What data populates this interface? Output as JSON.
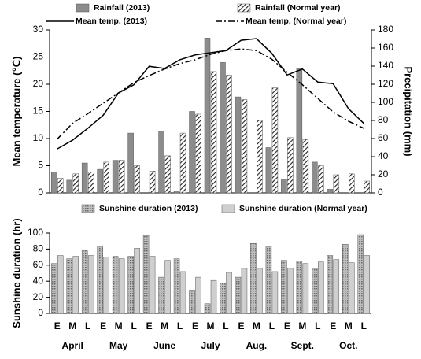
{
  "chart_data": [
    {
      "type": "bar",
      "y_label": "Mean temperature (℃)",
      "y2_label": "Precipitation (mm)",
      "ylim": [
        0,
        30
      ],
      "yticks": [
        0,
        5,
        10,
        15,
        20,
        25,
        30
      ],
      "y2lim": [
        0,
        180
      ],
      "y2ticks": [
        0,
        20,
        40,
        60,
        80,
        100,
        120,
        140,
        160,
        180
      ],
      "series": [
        {
          "name": "Rainfall (2013)",
          "type": "bar",
          "axis": "y2",
          "color": "#8c8c8c",
          "values": [
            23,
            14,
            33,
            26,
            36,
            66,
            0,
            68,
            2,
            90,
            171,
            144,
            106,
            0,
            50,
            15,
            137,
            34,
            4,
            0,
            0
          ]
        },
        {
          "name": "Rainfall (Normal year)",
          "type": "bar",
          "axis": "y2",
          "color": "#222222",
          "hatch": true,
          "values": [
            16,
            21,
            23,
            34,
            36,
            30,
            24,
            41,
            66,
            87,
            134,
            130,
            103,
            80,
            116,
            61,
            59,
            30,
            20,
            21,
            13
          ]
        },
        {
          "name": "Mean temp. (2013)",
          "type": "line",
          "color": "#000000",
          "values": [
            8.1,
            9.7,
            11.9,
            14.3,
            18.4,
            19.9,
            23.3,
            22.9,
            24.5,
            25.4,
            25.8,
            26.2,
            28.1,
            28.4,
            25.7,
            21.7,
            22.8,
            20.4,
            20.1,
            15.5,
            12.8
          ]
        },
        {
          "name": "Mean temp. (Normal year)",
          "type": "line",
          "dash": "dashdot",
          "color": "#000000",
          "values": [
            9.9,
            12.8,
            14.6,
            16.5,
            18.4,
            20.3,
            21.6,
            22.8,
            23.8,
            24.5,
            25.5,
            26.2,
            26.5,
            26.2,
            24.6,
            22.2,
            19.9,
            17.4,
            14.9,
            13.2,
            11.9
          ]
        }
      ]
    },
    {
      "type": "bar",
      "y_label": "Sunshine duration (hr)",
      "ylim": [
        0,
        100
      ],
      "yticks": [
        0,
        20,
        40,
        60,
        80,
        100
      ],
      "categories": [
        "E",
        "M",
        "L",
        "E",
        "M",
        "L",
        "E",
        "M",
        "L",
        "E",
        "M",
        "L",
        "E",
        "M",
        "L",
        "E",
        "M",
        "L",
        "E",
        "M",
        "L"
      ],
      "groups": [
        "April",
        "May",
        "June",
        "July",
        "Aug.",
        "Sept.",
        "Oct."
      ],
      "series": [
        {
          "name": "Sunshine duration (2013)",
          "type": "bar",
          "color": "#9a9a9a",
          "dots": true,
          "values": [
            62,
            68,
            78,
            84,
            71,
            71,
            97,
            45,
            68,
            29,
            12,
            38,
            45,
            87,
            84,
            66,
            65,
            56,
            72,
            86,
            98
          ]
        },
        {
          "name": "Sunshine duration (Normal year)",
          "type": "bar",
          "color": "#cfcfcf",
          "values": [
            72,
            71,
            72,
            70,
            68,
            81,
            71,
            66,
            52,
            45,
            41,
            51,
            56,
            56,
            52,
            56,
            62,
            64,
            67,
            63,
            72
          ]
        }
      ]
    }
  ]
}
